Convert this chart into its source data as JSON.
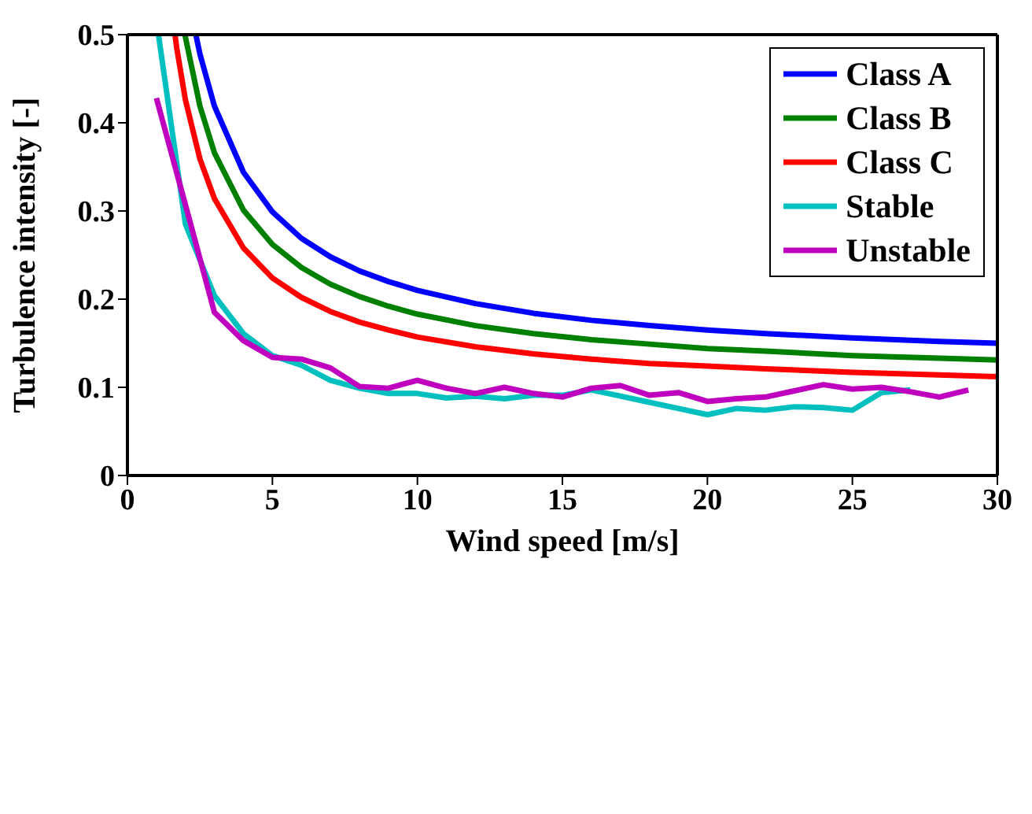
{
  "chart_data": {
    "type": "line",
    "xlabel": "Wind speed [m/s]",
    "ylabel": "Turbulence intensity [-]",
    "xlim": [
      0,
      30
    ],
    "ylim": [
      0,
      0.5
    ],
    "xticks": [
      0,
      5,
      10,
      15,
      20,
      25,
      30
    ],
    "yticks": [
      0,
      0.1,
      0.2,
      0.3,
      0.4,
      0.5
    ],
    "legend": "top right",
    "series": [
      {
        "name": "Class A",
        "color": "#0000ff",
        "x": [
          2.36,
          2.5,
          3,
          4,
          5,
          6,
          7,
          8,
          9,
          10,
          12,
          14,
          16,
          18,
          20,
          22,
          25,
          28,
          30
        ],
        "values": [
          0.5,
          0.478,
          0.419,
          0.344,
          0.299,
          0.269,
          0.248,
          0.232,
          0.22,
          0.21,
          0.195,
          0.184,
          0.176,
          0.17,
          0.165,
          0.161,
          0.156,
          0.152,
          0.15
        ]
      },
      {
        "name": "Class B",
        "color": "#008000",
        "x": [
          1.98,
          2,
          2.5,
          3,
          4,
          5,
          6,
          7,
          8,
          9,
          10,
          12,
          14,
          16,
          18,
          20,
          22,
          25,
          28,
          30
        ],
        "values": [
          0.5,
          0.497,
          0.419,
          0.366,
          0.301,
          0.262,
          0.236,
          0.217,
          0.203,
          0.192,
          0.183,
          0.17,
          0.161,
          0.154,
          0.149,
          0.144,
          0.141,
          0.136,
          0.133,
          0.131
        ]
      },
      {
        "name": "Class C",
        "color": "#ff0000",
        "x": [
          1.64,
          1.7,
          2,
          2.5,
          3,
          4,
          5,
          6,
          7,
          8,
          9,
          10,
          12,
          14,
          16,
          18,
          20,
          22,
          25,
          28,
          30
        ],
        "values": [
          0.5,
          0.485,
          0.426,
          0.359,
          0.314,
          0.258,
          0.224,
          0.202,
          0.186,
          0.174,
          0.165,
          0.157,
          0.146,
          0.138,
          0.132,
          0.127,
          0.124,
          0.121,
          0.117,
          0.114,
          0.112
        ]
      },
      {
        "name": "Stable",
        "color": "#00bfbf",
        "x": [
          1.07,
          2,
          3,
          4,
          5,
          6,
          7,
          8,
          9,
          10,
          11,
          12,
          13,
          14,
          15,
          16,
          17,
          18,
          19,
          20,
          21,
          22,
          23,
          24,
          25,
          26,
          27
        ],
        "values": [
          0.5,
          0.285,
          0.204,
          0.161,
          0.136,
          0.125,
          0.108,
          0.099,
          0.093,
          0.093,
          0.088,
          0.09,
          0.087,
          0.091,
          0.091,
          0.097,
          0.09,
          0.083,
          0.076,
          0.069,
          0.076,
          0.074,
          0.078,
          0.077,
          0.074,
          0.094,
          0.097
        ]
      },
      {
        "name": "Unstable",
        "color": "#bf00bf",
        "x": [
          1,
          2,
          3,
          4,
          5,
          6,
          7,
          8,
          9,
          10,
          11,
          12,
          13,
          14,
          15,
          16,
          17,
          18,
          19,
          20,
          21,
          22,
          23,
          24,
          25,
          26,
          27,
          28,
          29
        ],
        "values": [
          0.428,
          0.307,
          0.185,
          0.153,
          0.134,
          0.132,
          0.122,
          0.101,
          0.099,
          0.108,
          0.099,
          0.093,
          0.1,
          0.093,
          0.089,
          0.099,
          0.102,
          0.091,
          0.094,
          0.084,
          0.087,
          0.089,
          0.096,
          0.103,
          0.098,
          0.1,
          0.095,
          0.089,
          0.097
        ]
      }
    ]
  }
}
